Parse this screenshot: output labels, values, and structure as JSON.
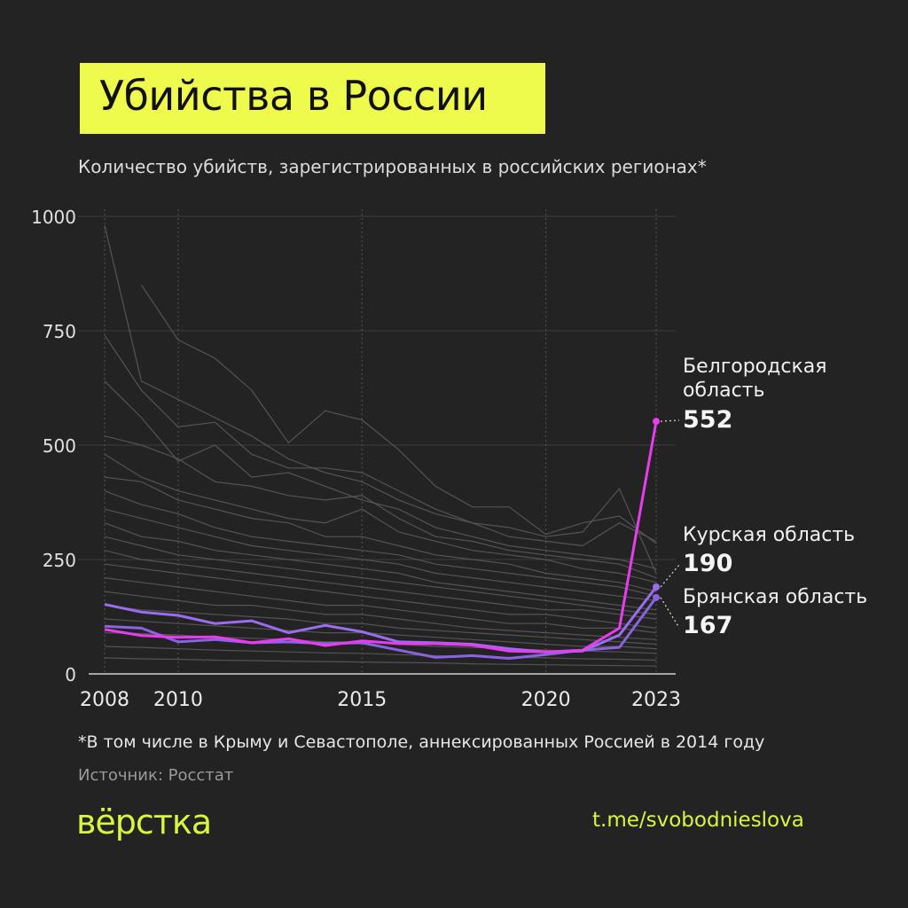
{
  "title": "Убийства в России",
  "subtitle": "Количество убийств, зарегистрированных в российских регионах*",
  "footnote": "*В том числе в Крыму и Севастополе, аннексированных Россией в 2014 году",
  "source": "Источник: Росстат",
  "logo": "вёрстка",
  "link": "t.me/svobodnieslova",
  "colors": {
    "background": "#232323",
    "title_bg": "#eefa4c",
    "belgorod": "#e83cf0",
    "kursk": "#9b6cf0",
    "bryansk": "#8a63e0",
    "others": "#5a5a5a",
    "brand": "#d9f53e"
  },
  "chart_data": {
    "type": "line",
    "x": [
      2008,
      2009,
      2010,
      2011,
      2012,
      2013,
      2014,
      2015,
      2016,
      2017,
      2018,
      2019,
      2020,
      2021,
      2022,
      2023
    ],
    "xticks": [
      "2008",
      "2010",
      "2015",
      "2020",
      "2023"
    ],
    "yticks": [
      "0",
      "250",
      "500",
      "750",
      "1000"
    ],
    "ylim": [
      0,
      1000
    ],
    "grid": true,
    "highlighted": [
      {
        "name": "Белгородская область",
        "label_line1": "Белгородская",
        "label_line2": "область",
        "last_value": "552",
        "color": "#e83cf0",
        "values": [
          97,
          84,
          80,
          81,
          68,
          77,
          62,
          72,
          66,
          66,
          63,
          50,
          48,
          52,
          100,
          552
        ]
      },
      {
        "name": "Курская область",
        "label_line1": "Курская область",
        "last_value": "190",
        "color": "#9b6cf0",
        "values": [
          152,
          135,
          128,
          110,
          116,
          90,
          106,
          92,
          70,
          68,
          65,
          55,
          48,
          50,
          85,
          190
        ]
      },
      {
        "name": "Брянская область",
        "label_line1": "Брянская область",
        "last_value": "167",
        "color": "#8a63e0",
        "values": [
          104,
          100,
          70,
          75,
          68,
          70,
          66,
          68,
          52,
          36,
          40,
          34,
          42,
          52,
          58,
          167
        ]
      }
    ],
    "other_regions": [
      [
        980,
        640,
        600,
        560,
        520,
        470,
        440,
        420,
        380,
        350,
        330,
        300,
        290,
        280,
        330,
        290
      ],
      [
        null,
        850,
        730,
        690,
        620,
        505,
        575,
        555,
        490,
        410,
        365,
        365,
        305,
        330,
        345,
        285
      ],
      [
        740,
        620,
        540,
        550,
        480,
        450,
        450,
        440,
        400,
        360,
        330,
        320,
        300,
        310,
        405,
        220
      ],
      [
        640,
        560,
        465,
        500,
        430,
        440,
        410,
        380,
        360,
        320,
        300,
        280,
        270,
        260,
        250,
        230
      ],
      [
        520,
        500,
        470,
        420,
        410,
        390,
        380,
        390,
        340,
        300,
        290,
        270,
        260,
        250,
        240,
        210
      ],
      [
        480,
        430,
        400,
        380,
        360,
        340,
        330,
        360,
        310,
        290,
        270,
        260,
        250,
        230,
        220,
        200
      ],
      [
        430,
        420,
        380,
        360,
        340,
        330,
        300,
        300,
        280,
        260,
        250,
        240,
        220,
        210,
        200,
        180
      ],
      [
        400,
        370,
        350,
        320,
        300,
        290,
        280,
        270,
        260,
        240,
        230,
        220,
        210,
        200,
        190,
        170
      ],
      [
        360,
        340,
        320,
        300,
        280,
        270,
        260,
        250,
        240,
        220,
        210,
        200,
        190,
        180,
        170,
        160
      ],
      [
        330,
        300,
        290,
        270,
        260,
        250,
        240,
        230,
        220,
        200,
        190,
        180,
        170,
        160,
        150,
        140
      ],
      [
        300,
        280,
        260,
        250,
        240,
        230,
        220,
        210,
        200,
        190,
        180,
        170,
        160,
        150,
        140,
        130
      ],
      [
        270,
        250,
        240,
        230,
        220,
        210,
        200,
        190,
        180,
        170,
        160,
        150,
        140,
        140,
        130,
        120
      ],
      [
        240,
        230,
        220,
        210,
        200,
        190,
        180,
        170,
        160,
        150,
        140,
        130,
        130,
        120,
        110,
        100
      ],
      [
        210,
        200,
        190,
        180,
        170,
        160,
        150,
        150,
        140,
        130,
        120,
        110,
        110,
        100,
        100,
        90
      ],
      [
        180,
        170,
        160,
        150,
        150,
        140,
        130,
        130,
        120,
        110,
        100,
        95,
        90,
        85,
        80,
        75
      ],
      [
        150,
        140,
        135,
        130,
        125,
        120,
        110,
        110,
        100,
        95,
        90,
        85,
        80,
        75,
        70,
        65
      ],
      [
        120,
        115,
        110,
        105,
        100,
        95,
        90,
        90,
        85,
        80,
        75,
        70,
        65,
        60,
        60,
        55
      ],
      [
        90,
        88,
        85,
        80,
        78,
        75,
        70,
        70,
        65,
        60,
        58,
        55,
        52,
        50,
        48,
        45
      ],
      [
        60,
        58,
        55,
        52,
        50,
        48,
        46,
        45,
        42,
        40,
        38,
        36,
        35,
        33,
        32,
        30
      ],
      [
        35,
        33,
        32,
        30,
        29,
        28,
        27,
        26,
        25,
        24,
        22,
        21,
        20,
        19,
        18,
        17
      ]
    ]
  }
}
